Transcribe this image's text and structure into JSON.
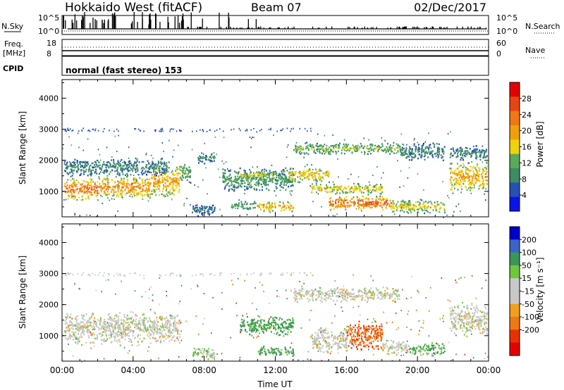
{
  "header": {
    "station": "Hokkaido West (fitACF)",
    "beam": "Beam 07",
    "date": "02/Dec/2017"
  },
  "nsky_panel": {
    "left_label": "N.Sky",
    "right_label": "N.Search",
    "left_ticks": [
      "10^5",
      "10^0"
    ],
    "right_ticks": [
      "10^5",
      "10^0"
    ]
  },
  "freq_panel": {
    "left_label_line1": "Freq.",
    "left_label_line2": "[MHz]",
    "left_ticks": [
      "18",
      "8"
    ],
    "right_label": "Nave",
    "right_ticks": [
      "60",
      "0"
    ]
  },
  "cpid_panel": {
    "label": "CPID",
    "mode_text": "normal (fast stereo) 153"
  },
  "colors": {
    "power": [
      "#0a14e6",
      "#2850b4",
      "#3c8c64",
      "#5aaa5a",
      "#f0d20a",
      "#f0a00a",
      "#f07814",
      "#e64614",
      "#e60000"
    ],
    "velocity": [
      "#0000c8",
      "#3c64c8",
      "#3c965a",
      "#6ec83c",
      "#c8c8c8",
      "#c8c8c8",
      "#f0a01e",
      "#f07814",
      "#e63200",
      "#e60000"
    ]
  },
  "chart_data": [
    {
      "type": "heatmap",
      "name": "power",
      "ylabel": "Slant Range [km]",
      "xlim": [
        "00:00",
        "24:00"
      ],
      "ylim": [
        180,
        4600
      ],
      "yticks": [
        1000,
        2000,
        3000,
        4000
      ],
      "colorbar": {
        "label": "Power [dB]",
        "range": [
          0,
          32
        ],
        "tick_values": [
          4,
          8,
          12,
          16,
          20,
          24,
          28
        ],
        "tick_labels": [
          "4",
          "8",
          "12",
          "16",
          "20",
          "24",
          "28"
        ]
      },
      "regions": [
        {
          "t0": 0.1,
          "t1": 2.0,
          "r0": 700,
          "r1": 1500,
          "level": 26
        },
        {
          "t0": 2.0,
          "t1": 5.0,
          "r0": 750,
          "r1": 1550,
          "level": 24
        },
        {
          "t0": 5.0,
          "t1": 6.6,
          "r0": 800,
          "r1": 1900,
          "level": 22
        },
        {
          "t0": 0.1,
          "t1": 6.0,
          "r0": 1500,
          "r1": 2100,
          "level": 10
        },
        {
          "t0": 6.6,
          "t1": 7.2,
          "r0": 1200,
          "r1": 2000,
          "level": 14
        },
        {
          "t0": 7.3,
          "t1": 8.6,
          "r0": 200,
          "r1": 650,
          "level": 8
        },
        {
          "t0": 7.6,
          "t1": 8.6,
          "r0": 1900,
          "r1": 2300,
          "level": 10
        },
        {
          "t0": 9.0,
          "t1": 13.0,
          "r0": 1000,
          "r1": 1800,
          "level": 12
        },
        {
          "t0": 10.0,
          "t1": 12.0,
          "r0": 1400,
          "r1": 1700,
          "level": 18
        },
        {
          "t0": 11.0,
          "t1": 13.0,
          "r0": 350,
          "r1": 700,
          "level": 22
        },
        {
          "t0": 9.5,
          "t1": 11.0,
          "r0": 400,
          "r1": 700,
          "level": 14
        },
        {
          "t0": 12.5,
          "t1": 15.0,
          "r0": 1300,
          "r1": 1800,
          "level": 20
        },
        {
          "t0": 13.0,
          "t1": 19.0,
          "r0": 2200,
          "r1": 2600,
          "level": 15
        },
        {
          "t0": 14.0,
          "t1": 18.0,
          "r0": 900,
          "r1": 1300,
          "level": 18
        },
        {
          "t0": 15.0,
          "t1": 18.5,
          "r0": 400,
          "r1": 900,
          "level": 27
        },
        {
          "t0": 17.0,
          "t1": 18.0,
          "r0": 500,
          "r1": 750,
          "level": 30
        },
        {
          "t0": 18.5,
          "t1": 21.5,
          "r0": 300,
          "r1": 800,
          "level": 18
        },
        {
          "t0": 19.0,
          "t1": 21.5,
          "r0": 2000,
          "r1": 2600,
          "level": 10
        },
        {
          "t0": 21.8,
          "t1": 23.9,
          "r0": 1000,
          "r1": 2000,
          "level": 22
        },
        {
          "t0": 21.8,
          "t1": 23.9,
          "r0": 2000,
          "r1": 2500,
          "level": 10
        }
      ]
    },
    {
      "type": "heatmap",
      "name": "velocity",
      "ylabel": "Slant Range [km]",
      "xlabel": "Time UT",
      "xlim": [
        "00:00",
        "24:00"
      ],
      "ylim": [
        180,
        4600
      ],
      "yticks": [
        1000,
        2000,
        3000,
        4000
      ],
      "xtick_labels": [
        "00:00",
        "04:00",
        "08:00",
        "12:00",
        "16:00",
        "20:00",
        "00:00"
      ],
      "colorbar": {
        "label": "Velocity [m s⁻¹]",
        "tick_labels": [
          "200",
          "100",
          "50",
          "15",
          "-15",
          "-50",
          "-100",
          "-200"
        ]
      },
      "regions": [
        {
          "t0": 0.1,
          "t1": 6.6,
          "r0": 700,
          "r1": 1800,
          "level": 0
        },
        {
          "t0": 7.3,
          "t1": 8.6,
          "r0": 200,
          "r1": 650,
          "level": 20
        },
        {
          "t0": 10.0,
          "t1": 13.0,
          "r0": 1000,
          "r1": 1700,
          "level": 40
        },
        {
          "t0": 11.0,
          "t1": 13.0,
          "r0": 350,
          "r1": 700,
          "level": 40
        },
        {
          "t0": 13.0,
          "t1": 19.0,
          "r0": 2100,
          "r1": 2600,
          "level": 0
        },
        {
          "t0": 14.0,
          "t1": 16.0,
          "r0": 400,
          "r1": 1300,
          "level": 0
        },
        {
          "t0": 16.0,
          "t1": 18.0,
          "r0": 500,
          "r1": 1500,
          "level": -70
        },
        {
          "t0": 18.0,
          "t1": 19.5,
          "r0": 400,
          "r1": 900,
          "level": 0
        },
        {
          "t0": 19.5,
          "t1": 21.5,
          "r0": 350,
          "r1": 800,
          "level": 30
        },
        {
          "t0": 21.8,
          "t1": 23.9,
          "r0": 1000,
          "r1": 2100,
          "level": 0
        }
      ]
    }
  ]
}
